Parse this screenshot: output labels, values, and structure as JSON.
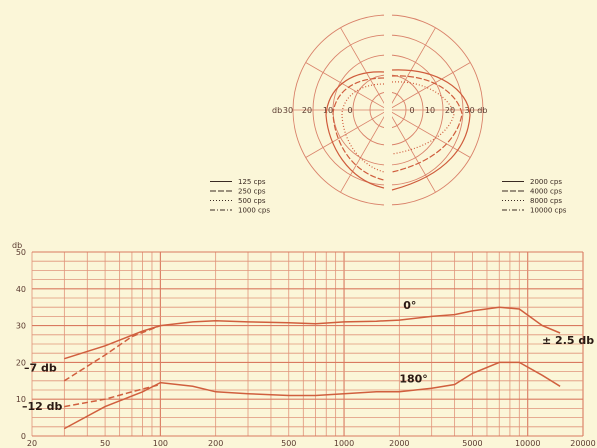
{
  "polar": {
    "ring_labels_left": [
      "30",
      "20",
      "10",
      "0"
    ],
    "ring_labels_right": [
      "0",
      "10",
      "20",
      "30 db"
    ],
    "left_unit": "db",
    "inner_labels": [
      "20",
      "10",
      "0",
      "0",
      "10",
      "20"
    ]
  },
  "legend_left": [
    {
      "label": "125 cps",
      "dash": "none"
    },
    {
      "label": "250 cps",
      "dash": "6,2"
    },
    {
      "label": "500 cps",
      "dash": "1,2"
    },
    {
      "label": "1000 cps",
      "dash": "5,2,1,2"
    }
  ],
  "legend_right": [
    {
      "label": "2000 cps",
      "dash": "none"
    },
    {
      "label": "4000 cps",
      "dash": "6,2"
    },
    {
      "label": "8000 cps",
      "dash": "1,2"
    },
    {
      "label": "10000 cps",
      "dash": "5,2,1,2"
    }
  ],
  "chart_data": {
    "type": "line",
    "ylabel": "db",
    "ylim": [
      0,
      50
    ],
    "yticks": [
      "0",
      "10",
      "20",
      "30",
      "40",
      "50"
    ],
    "xscale": "log",
    "xlim": [
      20,
      20000
    ],
    "xticks": [
      "20",
      "50",
      "100",
      "200",
      "500",
      "1000",
      "2000",
      "5000",
      "10000",
      "20000"
    ],
    "series": [
      {
        "name": "0°",
        "x": [
          30,
          50,
          80,
          100,
          150,
          200,
          300,
          500,
          700,
          1000,
          1500,
          2000,
          3000,
          4000,
          5000,
          7000,
          9000,
          12000,
          15000
        ],
        "y": [
          21,
          24.5,
          28.5,
          30,
          31,
          31.3,
          31,
          30.8,
          30.5,
          31,
          31.2,
          31.5,
          32.5,
          33,
          34,
          35,
          34.5,
          30,
          28
        ]
      },
      {
        "name": "",
        "x": [
          30,
          50,
          70,
          100
        ],
        "y": [
          15,
          22,
          27,
          30
        ]
      },
      {
        "name": "180°",
        "x": [
          30,
          50,
          80,
          100,
          150,
          200,
          300,
          500,
          700,
          1000,
          1500,
          2000,
          3000,
          4000,
          5000,
          7000,
          9000,
          12000,
          15000
        ],
        "y": [
          2,
          8,
          12,
          14.5,
          13.5,
          12,
          11.5,
          11,
          11,
          11.5,
          12,
          12,
          13,
          14,
          17,
          20,
          20,
          16.5,
          13.5
        ]
      },
      {
        "name": "",
        "x": [
          30,
          50,
          70,
          100
        ],
        "y": [
          8,
          10,
          12,
          14
        ]
      }
    ],
    "annotations": [
      {
        "text": "0°"
      },
      {
        "text": "180°"
      },
      {
        "text": "–7 db"
      },
      {
        "text": "–12 db"
      },
      {
        "text": "± 2.5 db"
      }
    ]
  }
}
